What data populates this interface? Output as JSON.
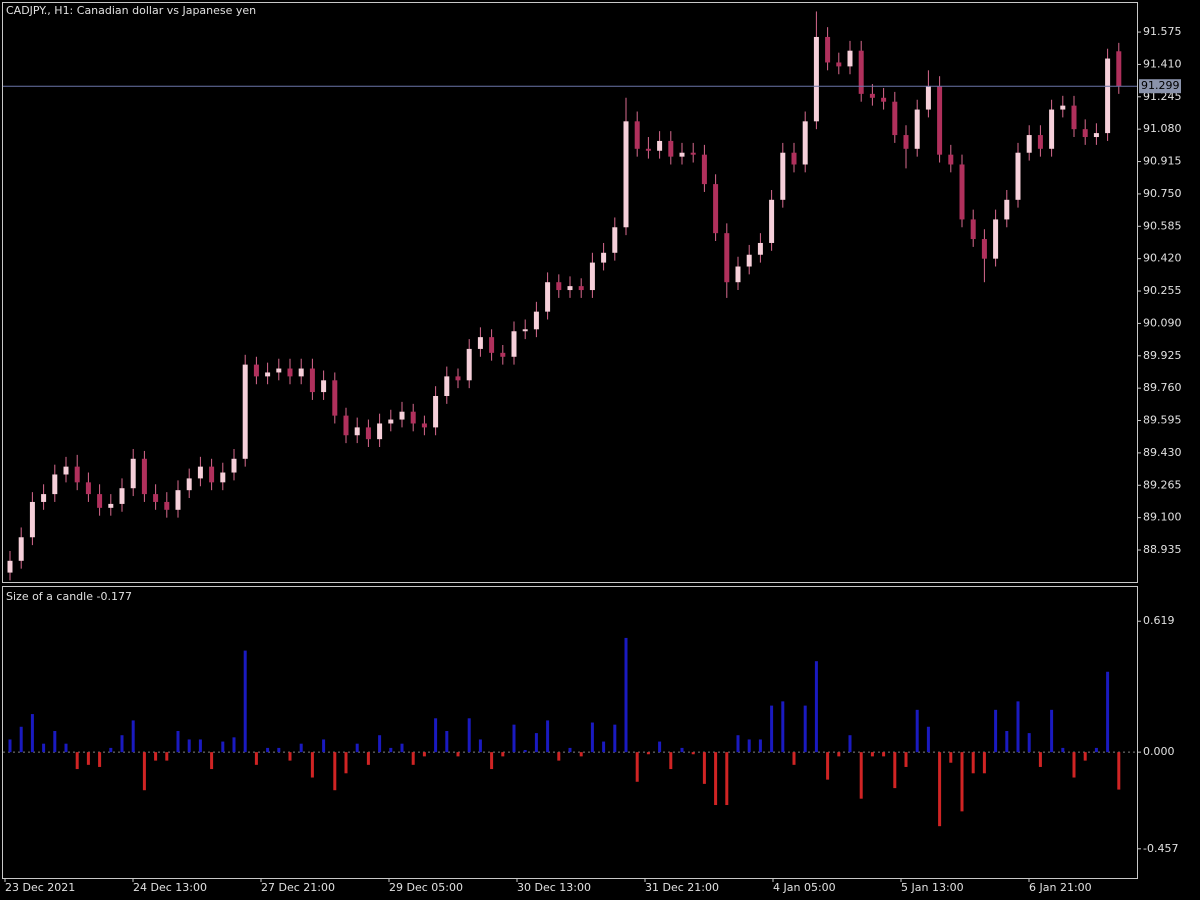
{
  "chart_data": [
    {
      "type": "candlestick",
      "title": "CADJPY., H1:  Canadian dollar vs Japanese yen",
      "open": [
        88.82,
        88.88,
        89.0,
        89.18,
        89.22,
        89.32,
        89.36,
        89.28,
        89.22,
        89.15,
        89.17,
        89.25,
        89.4,
        89.22,
        89.18,
        89.14,
        89.24,
        89.3,
        89.36,
        89.28,
        89.33,
        89.4,
        89.88,
        89.82,
        89.84,
        89.86,
        89.82,
        89.86,
        89.74,
        89.8,
        89.62,
        89.52,
        89.56,
        89.5,
        89.58,
        89.6,
        89.64,
        89.58,
        89.56,
        89.72,
        89.82,
        89.8,
        89.96,
        90.02,
        89.94,
        89.92,
        90.05,
        90.06,
        90.15,
        90.3,
        90.26,
        90.28,
        90.26,
        90.4,
        90.45,
        90.58,
        91.12,
        90.98,
        90.97,
        91.02,
        90.94,
        90.96,
        90.95,
        90.8,
        90.55,
        90.3,
        90.38,
        90.44,
        90.5,
        90.72,
        90.96,
        90.9,
        91.12,
        91.55,
        91.42,
        91.4,
        91.48,
        91.26,
        91.24,
        91.22,
        91.05,
        90.98,
        91.18,
        91.3,
        90.95,
        90.9,
        90.62,
        90.52,
        90.42,
        90.62,
        90.72,
        90.96,
        91.05,
        90.98,
        91.18,
        91.2,
        91.08,
        91.04,
        91.06,
        91.477
      ],
      "high": [
        88.93,
        89.05,
        89.23,
        89.27,
        89.37,
        89.41,
        89.42,
        89.33,
        89.27,
        89.22,
        89.3,
        89.45,
        89.44,
        89.27,
        89.23,
        89.29,
        89.35,
        89.41,
        89.4,
        89.38,
        89.45,
        89.93,
        89.92,
        89.89,
        89.91,
        89.91,
        89.91,
        89.91,
        89.85,
        89.84,
        89.66,
        89.61,
        89.6,
        89.63,
        89.65,
        89.69,
        89.68,
        89.62,
        89.77,
        89.87,
        89.86,
        90.01,
        90.07,
        90.06,
        89.98,
        90.1,
        90.11,
        90.2,
        90.35,
        90.34,
        90.33,
        90.32,
        90.45,
        90.5,
        90.63,
        91.24,
        91.17,
        91.04,
        91.07,
        91.07,
        91.01,
        91.01,
        91.0,
        90.85,
        90.6,
        90.43,
        90.49,
        90.55,
        90.77,
        91.01,
        91.01,
        91.17,
        91.68,
        91.6,
        91.47,
        91.53,
        91.53,
        91.31,
        91.29,
        91.27,
        91.1,
        91.23,
        91.38,
        91.35,
        91.0,
        90.95,
        90.67,
        90.57,
        90.67,
        90.77,
        91.01,
        91.1,
        91.1,
        91.23,
        91.25,
        91.25,
        91.13,
        91.11,
        91.49,
        91.52
      ],
      "low": [
        88.78,
        88.84,
        88.96,
        89.14,
        89.18,
        89.28,
        89.24,
        89.18,
        89.11,
        89.11,
        89.13,
        89.21,
        89.18,
        89.14,
        89.1,
        89.1,
        89.2,
        89.26,
        89.24,
        89.24,
        89.29,
        89.36,
        89.78,
        89.78,
        89.8,
        89.78,
        89.78,
        89.7,
        89.7,
        89.58,
        89.48,
        89.48,
        89.46,
        89.46,
        89.54,
        89.56,
        89.54,
        89.52,
        89.52,
        89.68,
        89.76,
        89.76,
        89.92,
        89.9,
        89.88,
        89.88,
        90.01,
        90.02,
        90.11,
        90.22,
        90.22,
        90.22,
        90.22,
        90.36,
        90.41,
        90.54,
        90.94,
        90.93,
        90.93,
        90.9,
        90.9,
        90.91,
        90.76,
        90.51,
        90.22,
        90.26,
        90.34,
        90.4,
        90.46,
        90.68,
        90.86,
        90.86,
        91.08,
        91.38,
        91.36,
        91.36,
        91.22,
        91.2,
        91.18,
        91.01,
        90.88,
        90.94,
        91.14,
        90.91,
        90.86,
        90.58,
        90.48,
        90.3,
        90.38,
        90.58,
        90.68,
        90.92,
        90.94,
        90.94,
        91.14,
        91.04,
        91.0,
        91.0,
        91.02,
        91.26
      ],
      "close": [
        88.88,
        89.0,
        89.18,
        89.22,
        89.32,
        89.36,
        89.28,
        89.22,
        89.15,
        89.17,
        89.25,
        89.4,
        89.22,
        89.18,
        89.14,
        89.24,
        89.3,
        89.36,
        89.28,
        89.33,
        89.4,
        89.88,
        89.82,
        89.84,
        89.86,
        89.82,
        89.86,
        89.74,
        89.8,
        89.62,
        89.52,
        89.56,
        89.5,
        89.58,
        89.6,
        89.64,
        89.58,
        89.56,
        89.72,
        89.82,
        89.8,
        89.96,
        90.02,
        89.94,
        89.92,
        90.05,
        90.06,
        90.15,
        90.3,
        90.26,
        90.28,
        90.26,
        90.4,
        90.45,
        90.58,
        91.12,
        90.98,
        90.97,
        91.02,
        90.94,
        90.96,
        90.95,
        90.8,
        90.55,
        90.3,
        90.38,
        90.44,
        90.5,
        90.72,
        90.96,
        90.9,
        91.12,
        91.55,
        91.42,
        91.4,
        91.48,
        91.26,
        91.24,
        91.22,
        91.05,
        90.98,
        91.18,
        91.3,
        90.95,
        90.9,
        90.62,
        90.52,
        90.42,
        90.62,
        90.72,
        90.96,
        91.05,
        90.98,
        91.18,
        91.2,
        91.08,
        91.04,
        91.06,
        91.44,
        91.3
      ],
      "up_color": "#f6d0da",
      "down_color": "#b0305c",
      "wick_color": "#d86a8e",
      "current_price": 91.299,
      "price_line_color": "#6a74a8",
      "ylim": [
        88.772,
        91.718
      ],
      "yticks": [
        88.935,
        {
          "value": 89.1,
          "label": "89.100"
        },
        89.265,
        {
          "value": 89.43,
          "label": "89.430"
        },
        89.595,
        {
          "value": 89.76,
          "label": "89.760"
        },
        89.925,
        {
          "value": 90.09,
          "label": "90.090"
        },
        90.255,
        {
          "value": 90.42,
          "label": "90.420"
        },
        90.585,
        {
          "value": 90.75,
          "label": "90.750"
        },
        90.915,
        {
          "value": 91.08,
          "label": "91.080"
        },
        91.245,
        {
          "value": 91.41,
          "label": "91.410"
        },
        91.575
      ]
    },
    {
      "type": "bar",
      "title": "Size of a candle -0.177",
      "values": [
        0.06,
        0.12,
        0.18,
        0.04,
        0.1,
        0.04,
        -0.08,
        -0.06,
        -0.07,
        0.02,
        0.08,
        0.15,
        -0.18,
        -0.04,
        -0.04,
        0.1,
        0.06,
        0.06,
        -0.08,
        0.05,
        0.07,
        0.48,
        -0.06,
        0.02,
        0.02,
        -0.04,
        0.04,
        -0.12,
        0.06,
        -0.18,
        -0.1,
        0.04,
        -0.06,
        0.08,
        0.02,
        0.04,
        -0.06,
        -0.02,
        0.16,
        0.1,
        -0.02,
        0.16,
        0.06,
        -0.08,
        -0.02,
        0.13,
        0.01,
        0.09,
        0.15,
        -0.04,
        0.02,
        -0.02,
        0.14,
        0.05,
        0.13,
        0.54,
        -0.14,
        -0.01,
        0.05,
        -0.08,
        0.02,
        -0.01,
        -0.15,
        -0.25,
        -0.25,
        0.08,
        0.06,
        0.06,
        0.22,
        0.24,
        -0.06,
        0.22,
        0.43,
        -0.13,
        -0.02,
        0.08,
        -0.22,
        -0.02,
        -0.02,
        -0.17,
        -0.07,
        0.2,
        0.12,
        -0.35,
        -0.05,
        -0.28,
        -0.1,
        -0.1,
        0.2,
        0.1,
        0.24,
        0.09,
        -0.07,
        0.2,
        0.02,
        -0.12,
        -0.04,
        0.02,
        0.38,
        -0.177
      ],
      "positive_color": "#1a1ac0",
      "negative_color": "#d02424",
      "ylim": [
        -0.595,
        0.776
      ],
      "yticks": [
        0.619,
        {
          "value": 0,
          "label": "0.000"
        },
        -0.457
      ],
      "x_labels": [
        "23 Dec 2021",
        "24 Dec 13:00",
        "27 Dec 21:00",
        "29 Dec 05:00",
        "30 Dec 13:00",
        "31 Dec 21:00",
        "4 Jan 05:00",
        "5 Jan 13:00",
        "6 Jan 21:00"
      ]
    }
  ]
}
